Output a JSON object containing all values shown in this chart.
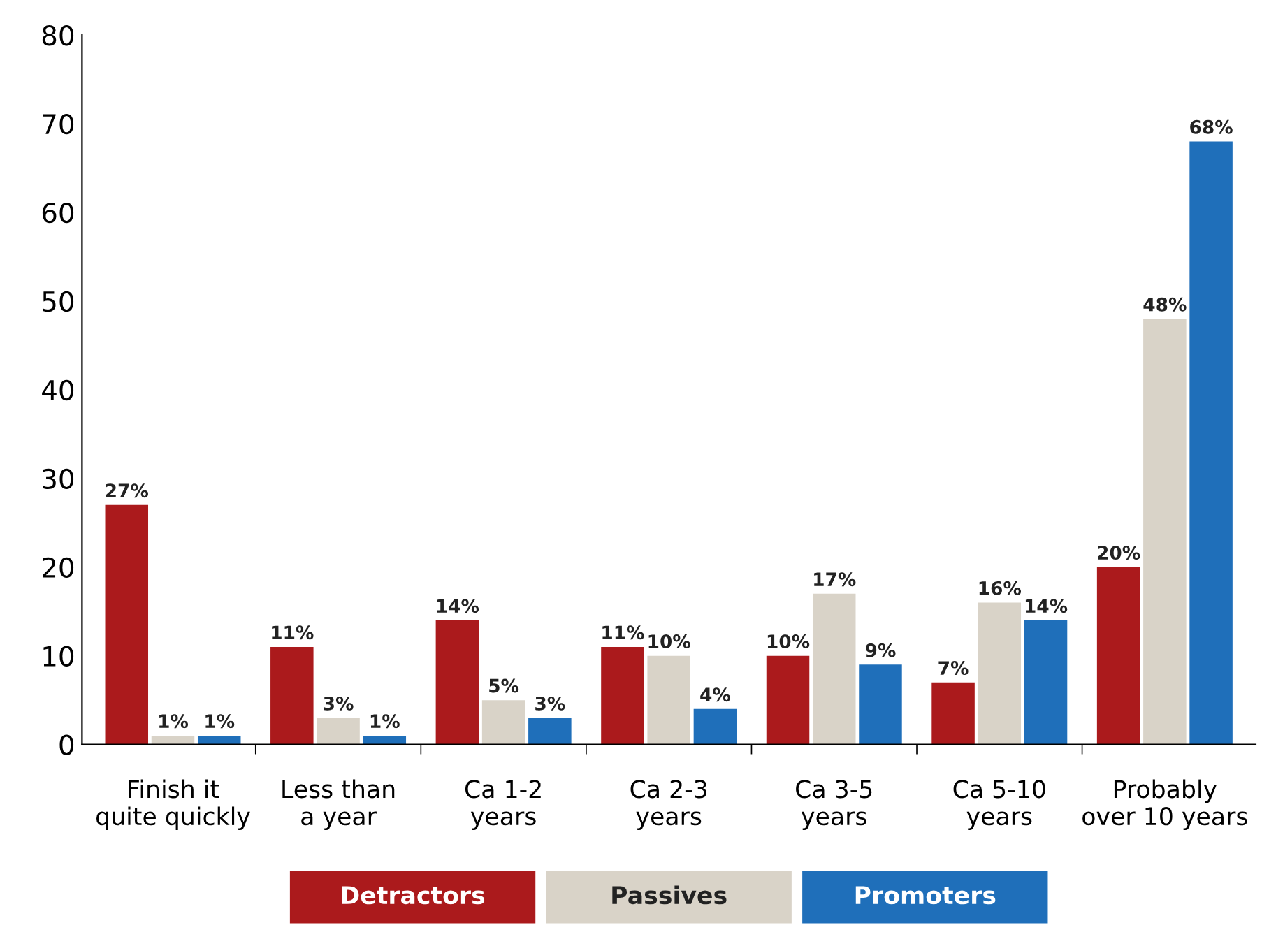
{
  "chart_data": {
    "type": "bar",
    "categories": [
      "Finish it\nquite quickly",
      "Less than\na year",
      "Ca 1-2\nyears",
      "Ca 2-3\nyears",
      "Ca 3-5\nyears",
      "Ca 5-10\nyears",
      "Probably\nover 10 years"
    ],
    "series": [
      {
        "name": "Detractors",
        "color": "#ab1a1c",
        "values": [
          27,
          11,
          14,
          11,
          10,
          7,
          20
        ],
        "value_labels": [
          "27%",
          "11%",
          "14%",
          "11%",
          "10%",
          "7%",
          "20%"
        ]
      },
      {
        "name": "Passives",
        "color": "#d9d3c8",
        "values": [
          1,
          3,
          5,
          10,
          17,
          16,
          48
        ],
        "value_labels": [
          "1%",
          "3%",
          "5%",
          "10%",
          "17%",
          "16%",
          "48%"
        ]
      },
      {
        "name": "Promoters",
        "color": "#1f6fba",
        "values": [
          1,
          1,
          3,
          4,
          9,
          14,
          68
        ],
        "value_labels": [
          "1%",
          "1%",
          "3%",
          "4%",
          "9%",
          "14%",
          "68%"
        ]
      }
    ],
    "ylim": [
      0,
      80
    ],
    "yticks": [
      0,
      10,
      20,
      30,
      40,
      50,
      60,
      70,
      80
    ],
    "grid": false,
    "legend": "bottom"
  }
}
